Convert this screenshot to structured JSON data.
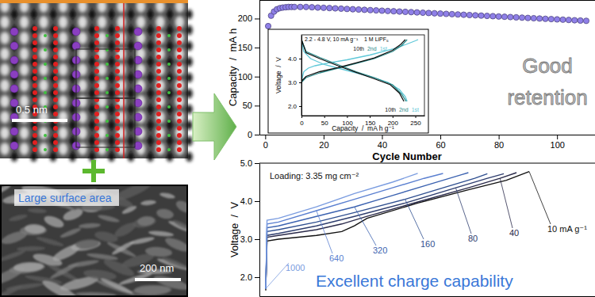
{
  "images": {
    "tem": {
      "scale_bar": "0.5 nm"
    },
    "sem": {
      "title": "Large surface area",
      "scale_bar": "200 nm"
    }
  },
  "chart_data": [
    {
      "type": "scatter",
      "marker": "circle",
      "color": "#8f80e8",
      "xlabel": "Cycle Number",
      "ylabel": "Capacity  /  mA h",
      "xlim": [
        -2,
        113
      ],
      "xticks": [
        0,
        20,
        40,
        60,
        80,
        100
      ],
      "ylim": [
        0,
        232
      ],
      "yticks": [
        0,
        50,
        100,
        150,
        200
      ],
      "annotations": [
        "Good",
        "retention"
      ],
      "x": [
        1,
        2,
        3,
        4,
        5,
        6,
        7,
        8,
        9,
        10,
        12,
        14,
        16,
        18,
        20,
        22,
        24,
        26,
        28,
        30,
        32,
        34,
        36,
        38,
        40,
        42,
        44,
        46,
        48,
        50,
        52,
        54,
        56,
        58,
        60,
        62,
        64,
        66,
        68,
        70,
        72,
        74,
        76,
        78,
        80,
        82,
        84,
        86,
        88,
        90,
        92,
        94,
        96,
        98,
        100,
        102,
        104,
        106,
        108,
        110
      ],
      "values": [
        187,
        205,
        212,
        216,
        218,
        219,
        219.5,
        220,
        220,
        220,
        220,
        220,
        219.5,
        219,
        218.6,
        218.1,
        217.6,
        217.1,
        216.6,
        216.1,
        215.6,
        215.1,
        214.6,
        214.1,
        213.6,
        213.1,
        212.6,
        212.1,
        211.6,
        211.1,
        210.6,
        210.1,
        209.6,
        209.1,
        208.6,
        208.1,
        207.6,
        207.1,
        206.6,
        206.1,
        205.6,
        205.1,
        204.6,
        204.1,
        203.6,
        203.1,
        202.6,
        202.1,
        201.6,
        201.1,
        200.6,
        200.1,
        199.6,
        199.1,
        198.6,
        198.1,
        197.6,
        197.1,
        196.6,
        196.1
      ]
    },
    {
      "type": "line",
      "title": "2.2 - 4.8 V, 10 mA g⁻¹    1 M LiPF₆",
      "xlabel": "Capacity  /  mA h g⁻¹",
      "ylabel": "Voltage  /  V",
      "xlim": [
        0,
        270
      ],
      "xticks": [
        0,
        50,
        100,
        150,
        200,
        250
      ],
      "ylim": [
        1.6,
        5.0
      ],
      "yticks": [
        {
          "value": 2,
          "label": "2.0"
        },
        {
          "value": 3,
          "label": "3.0"
        },
        {
          "value": 4,
          "label": "4.0"
        }
      ],
      "series": [
        {
          "name": "1st",
          "color": "#5fc8d8",
          "x": [
            0,
            5,
            15,
            30,
            60,
            100,
            150,
            200,
            230,
            250,
            256,
            null,
            0,
            5,
            20,
            50,
            100,
            150,
            190,
            215,
            228,
            232
          ],
          "values": [
            3.05,
            3.45,
            3.6,
            3.7,
            3.82,
            3.95,
            4.15,
            4.4,
            4.6,
            4.75,
            4.8,
            null,
            4.8,
            4.3,
            4.0,
            3.75,
            3.5,
            3.25,
            3.0,
            2.7,
            2.4,
            2.2
          ]
        },
        {
          "name": "2nd",
          "color": "#2a8a8a",
          "x": [
            0,
            10,
            40,
            80,
            120,
            160,
            200,
            220,
            232,
            null,
            0,
            10,
            40,
            80,
            120,
            160,
            200,
            220,
            230
          ],
          "values": [
            3.0,
            3.2,
            3.4,
            3.6,
            3.8,
            4.0,
            4.3,
            4.55,
            4.8,
            null,
            4.8,
            4.3,
            4.05,
            3.75,
            3.45,
            3.2,
            2.9,
            2.5,
            2.2
          ]
        },
        {
          "name": "10th",
          "color": "#111111",
          "x": [
            0,
            10,
            40,
            80,
            120,
            160,
            200,
            218,
            228,
            null,
            0,
            10,
            40,
            80,
            120,
            160,
            195,
            215,
            225
          ],
          "values": [
            3.05,
            3.25,
            3.45,
            3.62,
            3.82,
            4.03,
            4.35,
            4.6,
            4.8,
            null,
            4.8,
            4.25,
            4.0,
            3.7,
            3.42,
            3.15,
            2.9,
            2.55,
            2.2
          ]
        }
      ]
    },
    {
      "type": "line",
      "ylabel": "Voltage  /  V",
      "tick_labels": "y",
      "annotations": [
        "Loading: 3.35 mg cm⁻²",
        "Excellent charge capability"
      ],
      "xlim": [
        -5,
        260
      ],
      "ylim": [
        1.5,
        5.0
      ],
      "yticks": [
        {
          "value": 2,
          "label": "2.0"
        },
        {
          "value": 3,
          "label": "3.0"
        },
        {
          "value": 4,
          "label": "4.0"
        },
        {
          "value": 5,
          "label": "5.0"
        }
      ],
      "series": [
        {
          "name": "10 mA g⁻¹",
          "color": "#111111",
          "x": [
            0,
            1,
            10,
            40,
            60,
            70,
            80,
            120,
            160,
            190,
            208
          ],
          "values": [
            1.65,
            2.95,
            3.0,
            3.1,
            3.2,
            3.35,
            3.55,
            3.95,
            4.3,
            4.55,
            4.78
          ]
        },
        {
          "name": "40",
          "color": "#2a2a4a",
          "x": [
            0,
            1,
            10,
            40,
            60,
            80,
            120,
            160,
            185,
            198
          ],
          "values": [
            1.7,
            3.05,
            3.1,
            3.25,
            3.4,
            3.6,
            3.98,
            4.35,
            4.6,
            4.75
          ]
        },
        {
          "name": "80",
          "color": "#2e3d6e",
          "x": [
            0,
            1,
            10,
            40,
            70,
            110,
            150,
            175,
            188
          ],
          "values": [
            1.7,
            3.1,
            3.15,
            3.35,
            3.6,
            3.95,
            4.35,
            4.6,
            4.72
          ]
        },
        {
          "name": "160",
          "color": "#2f4f90",
          "x": [
            0,
            1,
            10,
            40,
            70,
            110,
            140,
            165,
            175
          ],
          "values": [
            1.7,
            3.2,
            3.25,
            3.45,
            3.7,
            4.05,
            4.35,
            4.6,
            4.72
          ]
        },
        {
          "name": "320",
          "color": "#3b62b0",
          "x": [
            0,
            1,
            10,
            40,
            70,
            100,
            130,
            155,
            160
          ],
          "values": [
            1.7,
            3.3,
            3.35,
            3.6,
            3.85,
            4.15,
            4.45,
            4.7,
            4.75
          ]
        },
        {
          "name": "640",
          "color": "#5a7fd0",
          "x": [
            0,
            1,
            10,
            40,
            70,
            100,
            125,
            140
          ],
          "values": [
            1.7,
            3.4,
            3.45,
            3.75,
            4.05,
            4.35,
            4.6,
            4.73
          ]
        },
        {
          "name": "1000",
          "color": "#7a9ce0",
          "x": [
            0,
            1,
            10,
            40,
            70,
            100,
            120
          ],
          "values": [
            1.7,
            3.5,
            3.55,
            3.85,
            4.2,
            4.5,
            4.73
          ]
        }
      ]
    }
  ]
}
